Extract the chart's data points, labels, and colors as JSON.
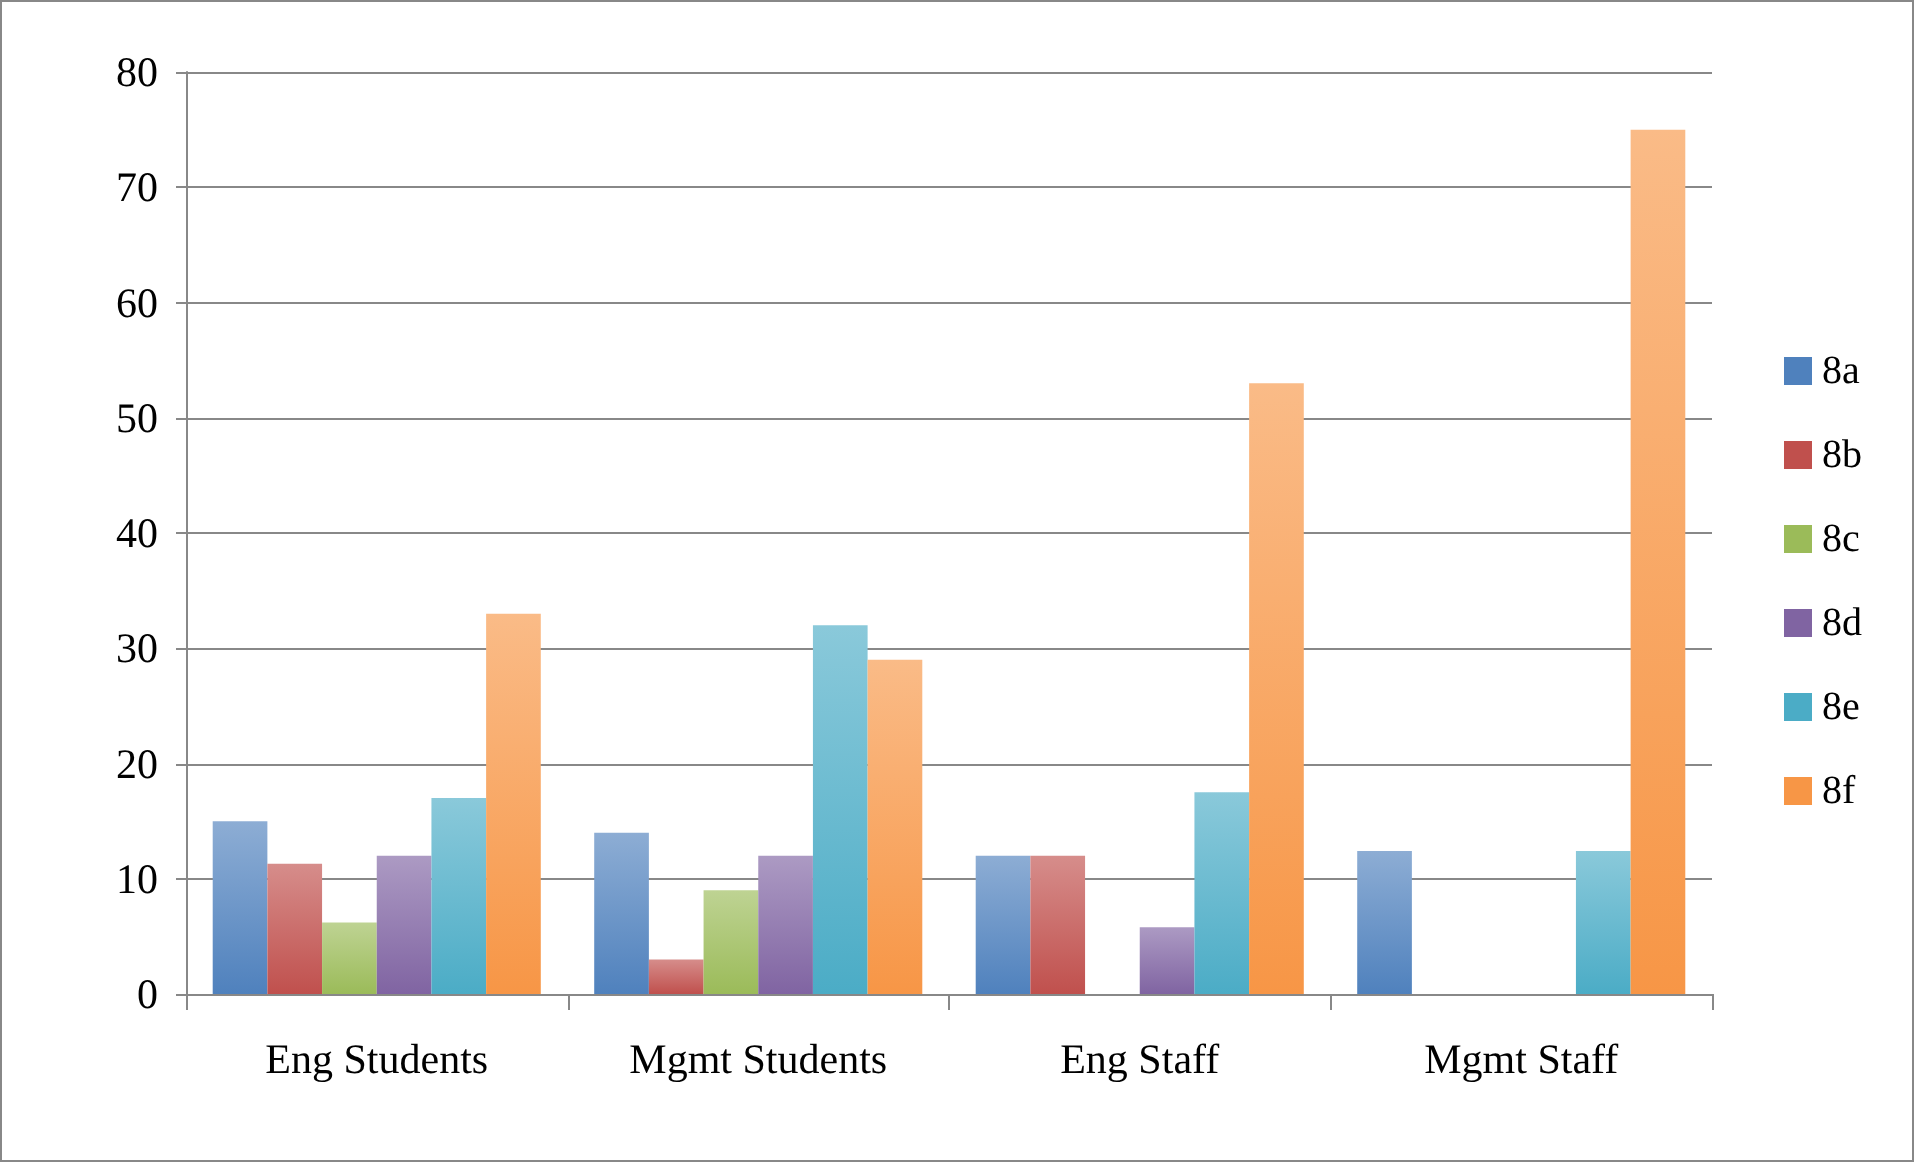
{
  "chart_data": {
    "type": "bar",
    "categories": [
      "Eng Students",
      "Mgmt Students",
      "Eng Staff",
      "Mgmt Staff"
    ],
    "series": [
      {
        "name": "8a",
        "color": "#4f81bd",
        "values": [
          15,
          14,
          12,
          12.4
        ]
      },
      {
        "name": "8b",
        "color": "#c0504d",
        "values": [
          11.3,
          3,
          12,
          null
        ]
      },
      {
        "name": "8c",
        "color": "#9bbb59",
        "values": [
          6.2,
          9,
          null,
          null
        ]
      },
      {
        "name": "8d",
        "color": "#8064a2",
        "values": [
          12,
          12,
          5.8,
          null
        ]
      },
      {
        "name": "8e",
        "color": "#4bacc6",
        "values": [
          17,
          32,
          17.5,
          12.4
        ]
      },
      {
        "name": "8f",
        "color": "#f79646",
        "values": [
          33,
          29,
          53,
          75
        ]
      }
    ],
    "ylim": [
      0,
      80
    ],
    "yticks": [
      0,
      10,
      20,
      30,
      40,
      50,
      60,
      70,
      80
    ],
    "grid": "y",
    "legend": "right"
  }
}
